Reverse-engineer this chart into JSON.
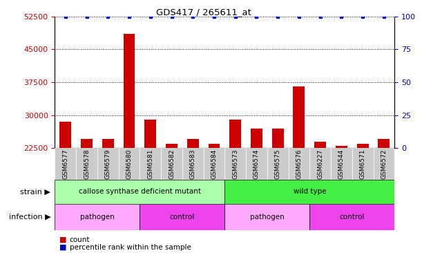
{
  "title": "GDS417 / 265611_at",
  "samples": [
    "GSM6577",
    "GSM6578",
    "GSM6579",
    "GSM6580",
    "GSM6581",
    "GSM6582",
    "GSM6583",
    "GSM6584",
    "GSM6573",
    "GSM6574",
    "GSM6575",
    "GSM6576",
    "GSM6227",
    "GSM6544",
    "GSM6571",
    "GSM6572"
  ],
  "counts": [
    28500,
    24500,
    24500,
    48500,
    29000,
    23500,
    24500,
    23500,
    29000,
    27000,
    27000,
    36500,
    24000,
    23000,
    23500,
    24500
  ],
  "percentiles": [
    100,
    100,
    100,
    100,
    100,
    100,
    100,
    100,
    100,
    100,
    100,
    100,
    100,
    100,
    100,
    100
  ],
  "ylim_left": [
    22500,
    52500
  ],
  "ylim_right": [
    0,
    100
  ],
  "yticks_left": [
    22500,
    30000,
    37500,
    45000,
    52500
  ],
  "yticks_right": [
    0,
    25,
    50,
    75,
    100
  ],
  "bar_color": "#cc0000",
  "percentile_color": "#0000bb",
  "strain_groups": [
    {
      "label": "callose synthase deficient mutant",
      "start": 0,
      "end": 8,
      "color": "#aaffaa"
    },
    {
      "label": "wild type",
      "start": 8,
      "end": 16,
      "color": "#44ee44"
    }
  ],
  "infection_groups": [
    {
      "label": "pathogen",
      "start": 0,
      "end": 4,
      "color": "#ffaaff"
    },
    {
      "label": "control",
      "start": 4,
      "end": 8,
      "color": "#ee44ee"
    },
    {
      "label": "pathogen",
      "start": 8,
      "end": 12,
      "color": "#ffaaff"
    },
    {
      "label": "control",
      "start": 12,
      "end": 16,
      "color": "#ee44ee"
    }
  ],
  "legend_count_color": "#cc0000",
  "legend_percentile_color": "#0000bb",
  "tick_label_color_left": "#cc0000",
  "tick_label_color_right": "#0000bb",
  "grid_color": "#000000",
  "strain_row_label": "strain",
  "infection_row_label": "infection",
  "xticklabel_bg": "#cccccc",
  "bar_width": 0.55
}
